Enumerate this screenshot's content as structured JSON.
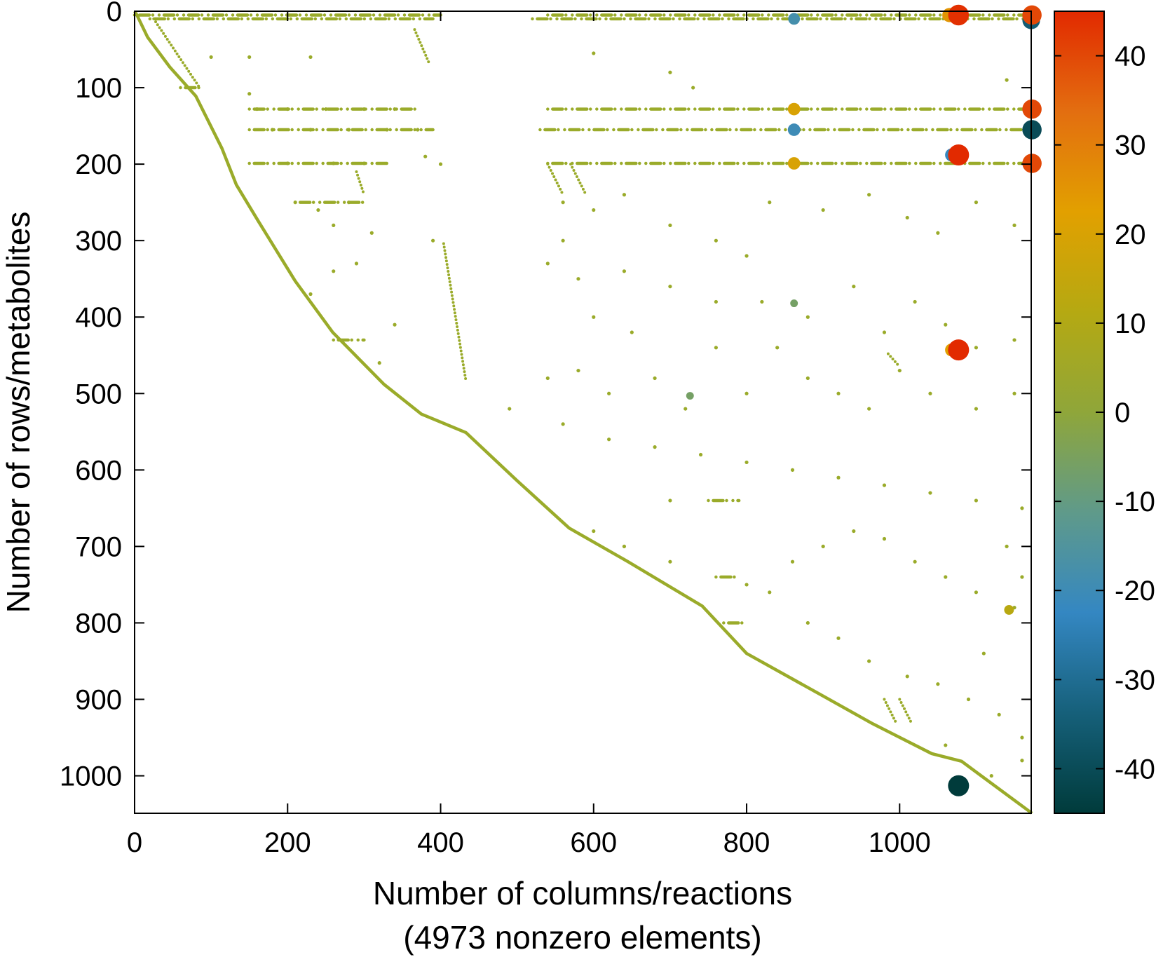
{
  "chart_data": {
    "type": "scatter",
    "subtype": "sparsity-pattern",
    "xlabel": "Number of columns/reactions",
    "xlabel_note": "(4973 nonzero elements)",
    "ylabel": "Number of rows/metabolites",
    "xlim": [
      0,
      1172
    ],
    "ylim": [
      1049,
      0
    ],
    "y_inverted": true,
    "xticks": [
      0,
      200,
      400,
      600,
      800,
      1000
    ],
    "yticks": [
      0,
      100,
      200,
      300,
      400,
      500,
      600,
      700,
      800,
      900,
      1000
    ],
    "grid": false,
    "colorbar": {
      "range": [
        -45,
        45
      ],
      "ticks": [
        -40,
        -30,
        -20,
        -10,
        0,
        10,
        20,
        30,
        40
      ],
      "colormap": [
        "#003b3b",
        "#16607a",
        "#3487c2",
        "#5f9a8a",
        "#8fa63a",
        "#b5a912",
        "#e2a000",
        "#e36e10",
        "#e22a00"
      ]
    },
    "default_color": "#9aab2a",
    "diagonal_trace": [
      [
        0,
        0
      ],
      [
        3,
        5
      ],
      [
        17,
        34
      ],
      [
        46,
        73
      ],
      [
        80,
        111
      ],
      [
        114,
        179
      ],
      [
        133,
        227
      ],
      [
        162,
        275
      ],
      [
        210,
        353
      ],
      [
        259,
        420
      ],
      [
        326,
        488
      ],
      [
        375,
        527
      ],
      [
        433,
        551
      ],
      [
        500,
        614
      ],
      [
        568,
        676
      ],
      [
        645,
        720
      ],
      [
        742,
        778
      ],
      [
        800,
        840
      ],
      [
        897,
        894
      ],
      [
        965,
        932
      ],
      [
        1042,
        971
      ],
      [
        1081,
        981
      ],
      [
        1173,
        1049
      ]
    ],
    "line_segments": [
      [
        [
          25,
          10
        ],
        [
          85,
          100
        ]
      ],
      [
        [
          366,
          24
        ],
        [
          385,
          68
        ]
      ],
      [
        [
          404,
          304
        ],
        [
          433,
          483
        ]
      ],
      [
        [
          290,
          210
        ],
        [
          300,
          240
        ]
      ],
      [
        [
          540,
          200
        ],
        [
          560,
          240
        ]
      ],
      [
        [
          570,
          200
        ],
        [
          590,
          240
        ]
      ],
      [
        [
          980,
          900
        ],
        [
          995,
          930
        ]
      ],
      [
        [
          1000,
          900
        ],
        [
          1015,
          930
        ]
      ],
      [
        [
          985,
          448
        ],
        [
          1000,
          465
        ]
      ]
    ],
    "row_bands": [
      [
        5,
        0,
        400
      ],
      [
        5,
        540,
        1172
      ],
      [
        10,
        20,
        390
      ],
      [
        10,
        520,
        1172
      ],
      [
        128,
        150,
        370
      ],
      [
        128,
        540,
        1172
      ],
      [
        155,
        150,
        390
      ],
      [
        155,
        530,
        1172
      ],
      [
        199,
        150,
        330
      ],
      [
        199,
        540,
        1172
      ],
      [
        100,
        60,
        90
      ],
      [
        430,
        260,
        300
      ],
      [
        250,
        210,
        300
      ],
      [
        640,
        750,
        790
      ],
      [
        740,
        760,
        790
      ],
      [
        800,
        770,
        800
      ]
    ],
    "points": [
      [
        150,
        108
      ],
      [
        160,
        128
      ],
      [
        200,
        128
      ],
      [
        250,
        128
      ],
      [
        300,
        128
      ],
      [
        340,
        128
      ],
      [
        180,
        155
      ],
      [
        230,
        155
      ],
      [
        280,
        155
      ],
      [
        330,
        155
      ],
      [
        370,
        155
      ],
      [
        200,
        199
      ],
      [
        260,
        199
      ],
      [
        300,
        199
      ],
      [
        380,
        190
      ],
      [
        210,
        250
      ],
      [
        240,
        260
      ],
      [
        260,
        280
      ],
      [
        280,
        250
      ],
      [
        310,
        290
      ],
      [
        290,
        330
      ],
      [
        260,
        340
      ],
      [
        230,
        370
      ],
      [
        340,
        410
      ],
      [
        320,
        460
      ],
      [
        390,
        300
      ],
      [
        400,
        200
      ],
      [
        560,
        250
      ],
      [
        600,
        260
      ],
      [
        640,
        240
      ],
      [
        700,
        280
      ],
      [
        760,
        300
      ],
      [
        800,
        320
      ],
      [
        830,
        250
      ],
      [
        900,
        260
      ],
      [
        960,
        240
      ],
      [
        1010,
        270
      ],
      [
        1050,
        290
      ],
      [
        1100,
        250
      ],
      [
        1150,
        280
      ],
      [
        540,
        330
      ],
      [
        580,
        350
      ],
      [
        640,
        340
      ],
      [
        700,
        360
      ],
      [
        760,
        380
      ],
      [
        820,
        380
      ],
      [
        880,
        400
      ],
      [
        940,
        360
      ],
      [
        980,
        420
      ],
      [
        1020,
        380
      ],
      [
        1060,
        410
      ],
      [
        1100,
        440
      ],
      [
        1150,
        430
      ],
      [
        540,
        480
      ],
      [
        580,
        470
      ],
      [
        620,
        500
      ],
      [
        680,
        480
      ],
      [
        720,
        520
      ],
      [
        800,
        500
      ],
      [
        840,
        440
      ],
      [
        880,
        480
      ],
      [
        920,
        500
      ],
      [
        960,
        520
      ],
      [
        1000,
        470
      ],
      [
        1040,
        500
      ],
      [
        1100,
        520
      ],
      [
        1150,
        500
      ],
      [
        560,
        540
      ],
      [
        620,
        560
      ],
      [
        680,
        570
      ],
      [
        740,
        580
      ],
      [
        800,
        590
      ],
      [
        860,
        600
      ],
      [
        920,
        610
      ],
      [
        980,
        620
      ],
      [
        1040,
        630
      ],
      [
        1100,
        640
      ],
      [
        1160,
        650
      ],
      [
        700,
        640
      ],
      [
        600,
        680
      ],
      [
        640,
        700
      ],
      [
        700,
        720
      ],
      [
        800,
        750
      ],
      [
        830,
        760
      ],
      [
        860,
        720
      ],
      [
        900,
        700
      ],
      [
        940,
        680
      ],
      [
        980,
        690
      ],
      [
        1020,
        720
      ],
      [
        1060,
        740
      ],
      [
        1100,
        760
      ],
      [
        1140,
        700
      ],
      [
        1160,
        740
      ],
      [
        880,
        800
      ],
      [
        920,
        820
      ],
      [
        960,
        850
      ],
      [
        1010,
        870
      ],
      [
        1050,
        880
      ],
      [
        1090,
        900
      ],
      [
        1130,
        920
      ],
      [
        1160,
        950
      ],
      [
        1060,
        960
      ],
      [
        1120,
        1000
      ],
      [
        1160,
        980
      ],
      [
        100,
        60
      ],
      [
        150,
        60
      ],
      [
        230,
        60
      ],
      [
        600,
        55
      ],
      [
        700,
        80
      ],
      [
        730,
        100
      ],
      [
        490,
        520
      ],
      [
        760,
        440
      ],
      [
        560,
        300
      ],
      [
        600,
        400
      ],
      [
        650,
        420
      ],
      [
        1140,
        90
      ],
      [
        1150,
        780
      ],
      [
        1110,
        840
      ]
    ],
    "highlighted_entries": [
      {
        "col": 862,
        "row": 10,
        "value": -18
      },
      {
        "col": 862,
        "row": 128,
        "value": 20
      },
      {
        "col": 862,
        "row": 155,
        "value": -20
      },
      {
        "col": 862,
        "row": 199,
        "value": 20
      },
      {
        "col": 862,
        "row": 382,
        "value": -6
      },
      {
        "col": 726,
        "row": 503,
        "value": -6
      },
      {
        "col": 1143,
        "row": 783,
        "value": 12
      },
      {
        "col": 1065,
        "row": 5,
        "value": 25
      },
      {
        "col": 1077,
        "row": 5,
        "value": 44
      },
      {
        "col": 1173,
        "row": 5,
        "value": 40
      },
      {
        "col": 1172,
        "row": 12,
        "value": -35
      },
      {
        "col": 1173,
        "row": 128,
        "value": 40
      },
      {
        "col": 1173,
        "row": 155,
        "value": -40
      },
      {
        "col": 1173,
        "row": 199,
        "value": 40
      },
      {
        "col": 1068,
        "row": 188,
        "value": -22
      },
      {
        "col": 1077,
        "row": 188,
        "value": 45
      },
      {
        "col": 1068,
        "row": 443,
        "value": 22
      },
      {
        "col": 1077,
        "row": 443,
        "value": 45
      },
      {
        "col": 1077,
        "row": 1013,
        "value": -45
      }
    ]
  }
}
